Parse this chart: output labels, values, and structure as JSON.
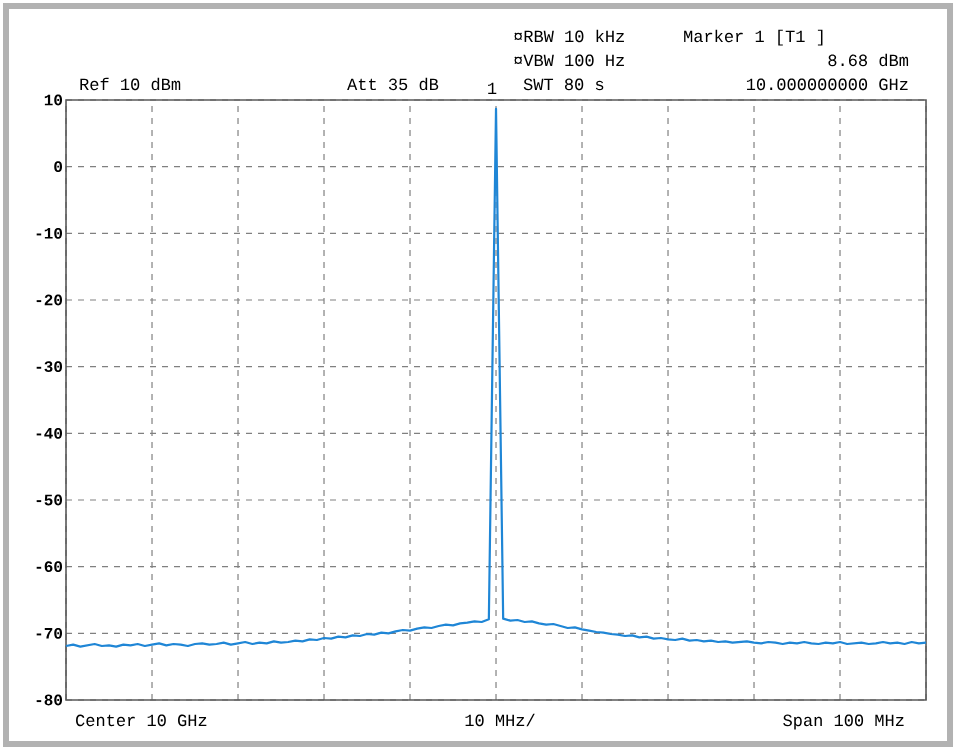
{
  "chart_data": {
    "type": "line",
    "categories": [
      null,
      null,
      null,
      null,
      null,
      null,
      null,
      null,
      null,
      null,
      null,
      null,
      null,
      null,
      null,
      null,
      null,
      null,
      null,
      null,
      null,
      null,
      null,
      null,
      null,
      null,
      null,
      null,
      null,
      null,
      null,
      null,
      null,
      null,
      null,
      null,
      null,
      null,
      null,
      null,
      null,
      null,
      null,
      null,
      null,
      null,
      null,
      null,
      null,
      null,
      null,
      null,
      null,
      null,
      null,
      null,
      null,
      null,
      null,
      null,
      null,
      null,
      null,
      null,
      null,
      null,
      null,
      null,
      null,
      null,
      null,
      null,
      null,
      null,
      null,
      null,
      null,
      null,
      null,
      null,
      null,
      null,
      null,
      null,
      null,
      null,
      null,
      null,
      null,
      null,
      null,
      null,
      null,
      null,
      null,
      null,
      null,
      null,
      null,
      null,
      null,
      null,
      null,
      null,
      null,
      null,
      null,
      null,
      null,
      null,
      null,
      null,
      null,
      null,
      null,
      null,
      null,
      null,
      null,
      null,
      null
    ],
    "values": [
      -71.9,
      -71.7,
      -72.0,
      -71.8,
      -71.6,
      -71.9,
      -71.8,
      -72.0,
      -71.7,
      -71.8,
      -71.6,
      -71.9,
      -71.7,
      -71.5,
      -71.8,
      -71.6,
      -71.7,
      -71.9,
      -71.6,
      -71.5,
      -71.7,
      -71.6,
      -71.4,
      -71.7,
      -71.5,
      -71.3,
      -71.6,
      -71.4,
      -71.5,
      -71.2,
      -71.4,
      -71.3,
      -71.1,
      -71.2,
      -70.9,
      -71.0,
      -70.7,
      -70.8,
      -70.5,
      -70.6,
      -70.3,
      -70.4,
      -70.1,
      -70.2,
      -69.9,
      -70.0,
      -69.7,
      -69.5,
      -69.6,
      -69.3,
      -69.1,
      -69.2,
      -68.9,
      -68.7,
      -68.8,
      -68.5,
      -68.4,
      -68.2,
      -68.3,
      -67.9,
      8.68,
      -67.8,
      -68.1,
      -68.0,
      -68.3,
      -68.2,
      -68.5,
      -68.7,
      -68.6,
      -68.9,
      -69.2,
      -69.1,
      -69.4,
      -69.6,
      -69.8,
      -69.9,
      -70.1,
      -70.2,
      -70.4,
      -70.3,
      -70.6,
      -70.5,
      -70.8,
      -70.7,
      -70.9,
      -71.0,
      -70.8,
      -71.1,
      -71.0,
      -71.2,
      -71.1,
      -71.3,
      -71.2,
      -71.4,
      -71.3,
      -71.2,
      -71.4,
      -71.5,
      -71.3,
      -71.4,
      -71.6,
      -71.4,
      -71.5,
      -71.3,
      -71.5,
      -71.6,
      -71.4,
      -71.5,
      -71.3,
      -71.6,
      -71.5,
      -71.4,
      -71.6,
      -71.5,
      -71.3,
      -71.5,
      -71.4,
      -71.6,
      -71.3,
      -71.5,
      -71.4
    ],
    "color": "#1f86d6",
    "ylim": [
      -80,
      10
    ],
    "yticks": [
      10,
      0,
      -10,
      -20,
      -30,
      -40,
      -50,
      -60,
      -70,
      -80
    ],
    "grid": true,
    "annotations": [
      "Ref 10 dBm",
      "Att 35 dB",
      "1",
      "¤RBW 10 kHz",
      "¤VBW 100 Hz",
      "SWT 80 s",
      "Marker 1 [T1 ]",
      "8.68 dBm",
      "10.000000000 GHz",
      "Center 10 GHz",
      "10 MHz/",
      "Span 100 MHz"
    ]
  }
}
